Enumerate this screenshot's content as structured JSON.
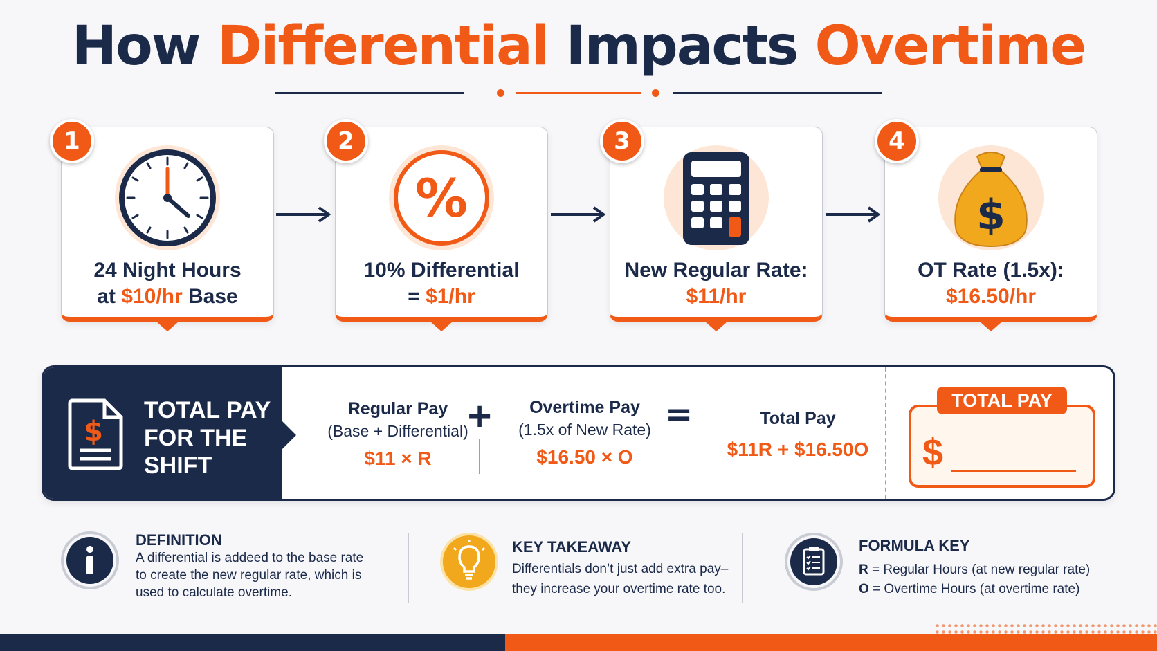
{
  "title": {
    "part1": "How ",
    "part2": "Differential",
    "part3": " Impacts ",
    "part4": "Overtime"
  },
  "steps": [
    {
      "number": "1",
      "icon": "clock-icon",
      "line1": "24 Night Hours",
      "line2_a": "at ",
      "line2_b": "$10/hr",
      "line2_c": " Base"
    },
    {
      "number": "2",
      "icon": "percent-icon",
      "line1": "10% Differential",
      "line2_a": "= ",
      "line2_b": "$1/hr",
      "line2_c": ""
    },
    {
      "number": "3",
      "icon": "calculator-icon",
      "line1": "New Regular Rate:",
      "line2_a": "",
      "line2_b": "$11/hr",
      "line2_c": ""
    },
    {
      "number": "4",
      "icon": "money-bag-icon",
      "line1": "OT Rate (1.5x):",
      "line2_a": "",
      "line2_b": "$16.50/hr",
      "line2_c": ""
    }
  ],
  "total": {
    "heading": [
      "TOTAL PAY",
      "FOR THE",
      "SHIFT"
    ],
    "doc_symbol": "$",
    "regular": {
      "title": "Regular Pay",
      "sub": "(Base + Differential)",
      "formula": "$11 × R"
    },
    "plus": "+",
    "overtime": {
      "title": "Overtime Pay",
      "sub": "(1.5x of New Rate)",
      "formula": "$16.50 × O"
    },
    "equals": "=",
    "result": {
      "title": "Total Pay",
      "formula": "$11R + $16.50O"
    },
    "box_label": "TOTAL PAY",
    "box_dollar": "$"
  },
  "info": {
    "definition": {
      "heading": "DEFINITION",
      "lines": [
        "A differential is addeed to the base rate",
        "to create the new regular rate, which is",
        "used to calculate overtime."
      ],
      "icon": "info-icon"
    },
    "takeaway": {
      "heading": "KEY TAKEAWAY",
      "lines": [
        "Differentials don’t just add extra pay–",
        "they increase your overtime rate too."
      ],
      "icon": "lightbulb-icon"
    },
    "key": {
      "heading": "FORMULA KEY",
      "r_letter": "R",
      "r_text": "= Regular Hours (at new regular rate)",
      "o_letter": "O",
      "o_text": "= Overtime Hours (at overtime rate)",
      "icon": "clipboard-icon"
    }
  },
  "colors": {
    "navy": "#1c2a4a",
    "orange": "#f15a16",
    "gold": "#f2a81d"
  }
}
